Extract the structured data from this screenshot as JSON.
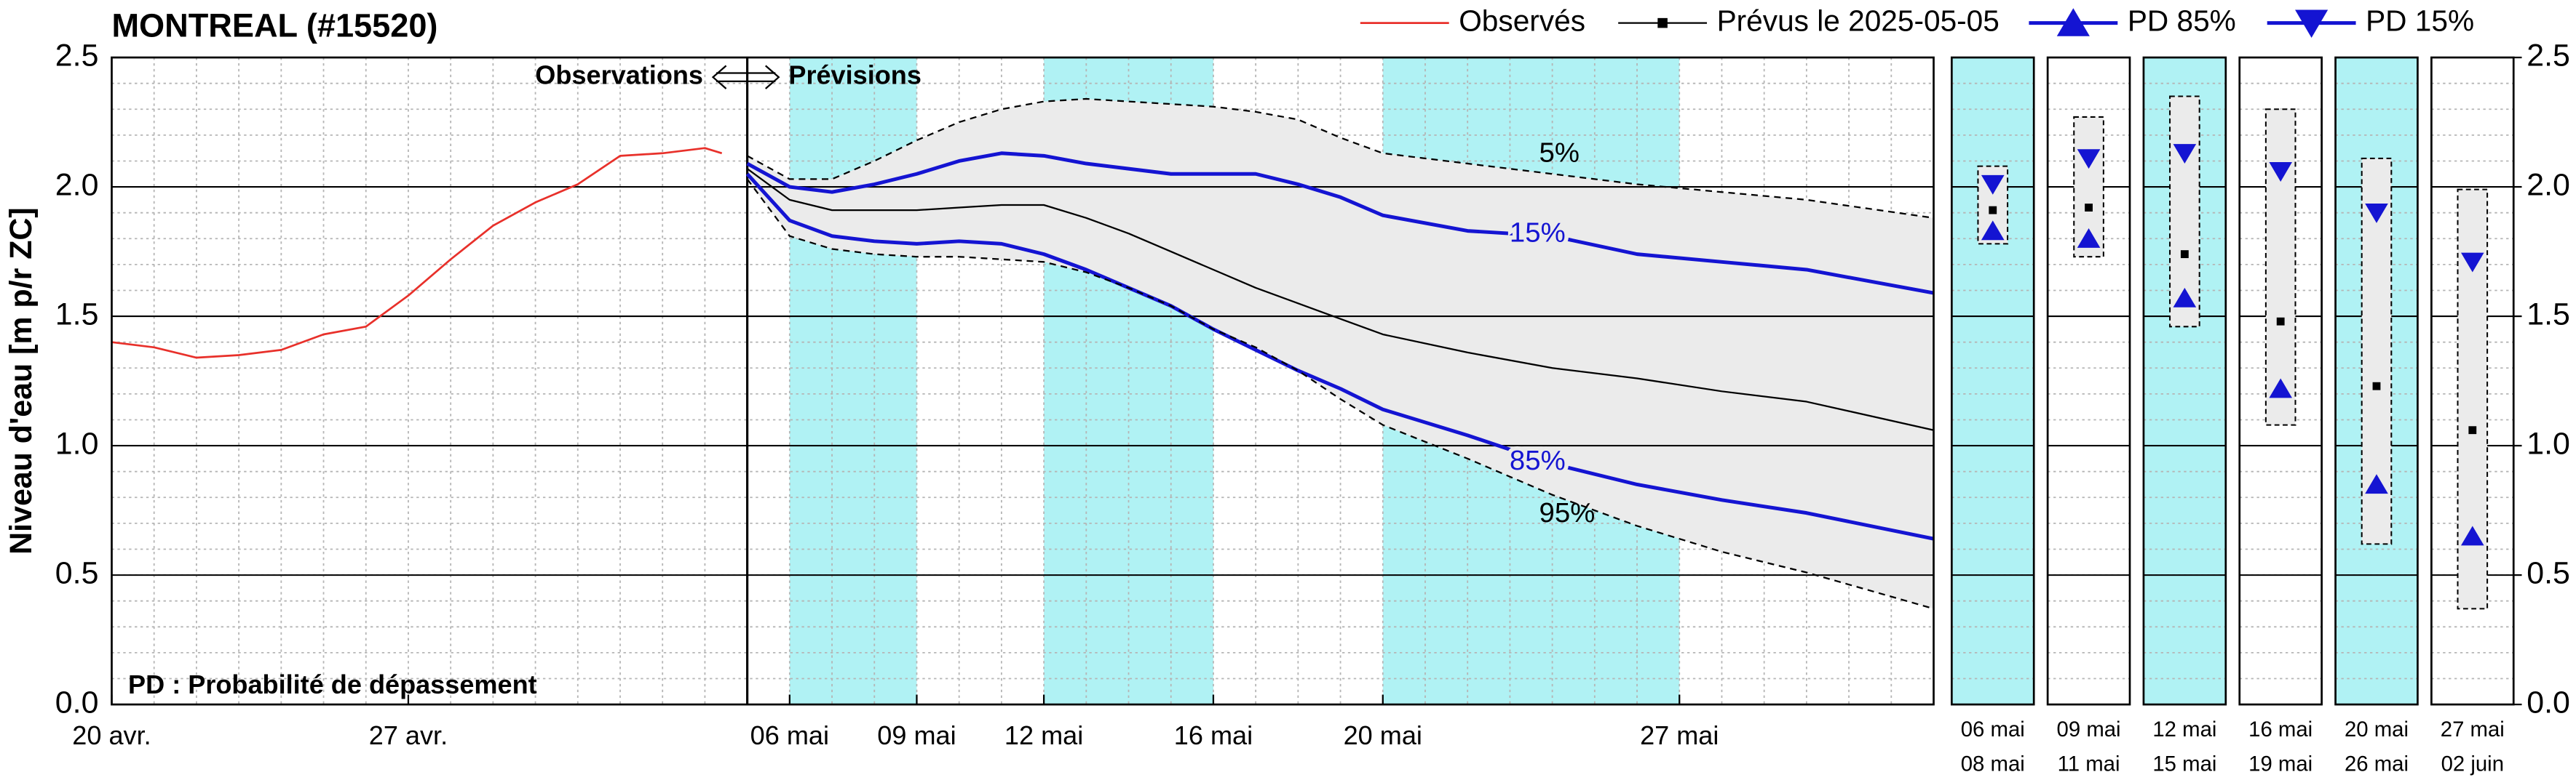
{
  "chart_data": [
    {
      "type": "line",
      "title": "MONTREAL (#15520)",
      "ylabel": "Niveau d'eau [m p/r ZC]",
      "annotations": {
        "observations": "Observations",
        "previsions": "Prévisions",
        "pd_note": "PD : Probabilité de dépassement"
      },
      "xlim": [
        110,
        153
      ],
      "xticks": [
        {
          "value": 110,
          "label": "20 avr."
        },
        {
          "value": 117,
          "label": "27 avr."
        },
        {
          "value": 126,
          "label": "06 mai"
        },
        {
          "value": 129,
          "label": "09 mai"
        },
        {
          "value": 132,
          "label": "12 mai"
        },
        {
          "value": 136,
          "label": "16 mai"
        },
        {
          "value": 140,
          "label": "20 mai"
        },
        {
          "value": 147,
          "label": "27 mai"
        }
      ],
      "ylim": [
        0,
        2.5
      ],
      "yticks": [
        {
          "value": 0,
          "label": "0.0"
        },
        0.5,
        {
          "value": 1,
          "label": "1.0"
        },
        1.5,
        {
          "value": 2,
          "label": "2.0"
        },
        2.5
      ],
      "grid": true,
      "boundary": 125,
      "bands": [
        [
          126,
          129
        ],
        [
          132,
          136
        ],
        [
          140,
          147
        ]
      ],
      "band_color": "#b0f2f4",
      "spread_color": "#ebebeb",
      "series": [
        {
          "name": "Observés",
          "color": "#e8302a",
          "width": 1.2,
          "x": [
            110,
            111,
            112,
            113,
            114,
            115,
            116,
            117,
            118,
            119,
            120,
            121,
            122,
            123,
            124,
            124.4
          ],
          "values": [
            1.4,
            1.38,
            1.34,
            1.35,
            1.37,
            1.43,
            1.46,
            1.58,
            1.72,
            1.85,
            1.94,
            2.01,
            2.12,
            2.13,
            2.15,
            2.13
          ]
        },
        {
          "name": "Prévus le 2025-05-05",
          "color": "#000000",
          "width": 1,
          "marker": "square",
          "x": [
            125,
            126,
            127,
            128,
            129,
            130,
            131,
            132,
            133,
            134,
            135,
            136,
            137,
            138,
            139,
            140,
            142,
            144,
            146,
            148,
            150,
            153
          ],
          "values": [
            2.07,
            1.95,
            1.91,
            1.91,
            1.91,
            1.92,
            1.93,
            1.93,
            1.88,
            1.82,
            1.75,
            1.68,
            1.61,
            1.55,
            1.49,
            1.43,
            1.36,
            1.3,
            1.26,
            1.21,
            1.17,
            1.06
          ]
        },
        {
          "name": "PD 85%",
          "inline_label": "85%",
          "color": "#1414d2",
          "width": 2.2,
          "marker": "triangle-up",
          "x": [
            125,
            126,
            127,
            128,
            129,
            130,
            131,
            132,
            133,
            134,
            135,
            136,
            137,
            138,
            139,
            140,
            142,
            144,
            146,
            148,
            150,
            153
          ],
          "values": [
            2.05,
            1.87,
            1.81,
            1.79,
            1.78,
            1.79,
            1.78,
            1.74,
            1.68,
            1.61,
            1.54,
            1.45,
            1.37,
            1.29,
            1.22,
            1.14,
            1.04,
            0.93,
            0.85,
            0.79,
            0.74,
            0.64
          ]
        },
        {
          "name": "PD 15%",
          "inline_label": "15%",
          "color": "#1414d2",
          "width": 2.2,
          "marker": "triangle-down",
          "x": [
            125,
            126,
            127,
            128,
            129,
            130,
            131,
            132,
            133,
            134,
            135,
            136,
            137,
            138,
            139,
            140,
            142,
            144,
            146,
            148,
            150,
            153
          ],
          "values": [
            2.09,
            2.0,
            1.98,
            2.01,
            2.05,
            2.1,
            2.13,
            2.12,
            2.09,
            2.07,
            2.05,
            2.05,
            2.05,
            2.01,
            1.96,
            1.89,
            1.83,
            1.81,
            1.74,
            1.71,
            1.68,
            1.59
          ]
        },
        {
          "name": "5%",
          "legend": false,
          "dashed": true,
          "color": "#000000",
          "width": 1,
          "x": [
            125,
            126,
            127,
            128,
            129,
            130,
            131,
            132,
            133,
            134,
            135,
            136,
            137,
            138,
            139,
            140,
            142,
            144,
            146,
            148,
            150,
            153
          ],
          "values": [
            2.12,
            2.03,
            2.03,
            2.1,
            2.18,
            2.25,
            2.3,
            2.33,
            2.34,
            2.33,
            2.32,
            2.31,
            2.29,
            2.26,
            2.19,
            2.13,
            2.09,
            2.05,
            2.01,
            1.98,
            1.95,
            1.88
          ]
        },
        {
          "name": "95%",
          "legend": false,
          "dashed": true,
          "color": "#000000",
          "width": 1,
          "x": [
            125,
            126,
            127,
            128,
            129,
            130,
            131,
            132,
            133,
            134,
            135,
            136,
            137,
            138,
            139,
            140,
            142,
            144,
            146,
            148,
            150,
            153
          ],
          "values": [
            2.03,
            1.81,
            1.76,
            1.74,
            1.73,
            1.73,
            1.72,
            1.71,
            1.67,
            1.61,
            1.54,
            1.45,
            1.38,
            1.29,
            1.18,
            1.08,
            0.95,
            0.81,
            0.69,
            0.59,
            0.51,
            0.37
          ]
        }
      ]
    },
    {
      "type": "range-box",
      "categories": [
        [
          "06 mai",
          "08 mai"
        ],
        [
          "09 mai",
          "11 mai"
        ],
        [
          "12 mai",
          "15 mai"
        ],
        [
          "16 mai",
          "19 mai"
        ],
        [
          "20 mai",
          "26 mai"
        ],
        [
          "27 mai",
          "02 juin"
        ]
      ],
      "highlight": [
        true,
        false,
        true,
        false,
        true,
        false
      ],
      "ylim": [
        0,
        2.5
      ],
      "yticks": [
        {
          "value": 0,
          "label": "0.0"
        },
        0.5,
        {
          "value": 1,
          "label": "1.0"
        },
        1.5,
        {
          "value": 2,
          "label": "2.0"
        },
        2.5
      ],
      "range_high": [
        2.08,
        2.27,
        2.35,
        2.3,
        2.11,
        1.99
      ],
      "range_low": [
        1.78,
        1.73,
        1.46,
        1.08,
        0.62,
        0.37
      ],
      "series": [
        {
          "marker": "triangle-down",
          "color": "#1414d2",
          "values": [
            2.01,
            2.11,
            2.13,
            2.06,
            1.9,
            1.71
          ]
        },
        {
          "marker": "square",
          "color": "#000000",
          "values": [
            1.91,
            1.92,
            1.74,
            1.48,
            1.23,
            1.06
          ]
        },
        {
          "marker": "triangle-up",
          "color": "#1414d2",
          "values": [
            1.83,
            1.8,
            1.57,
            1.22,
            0.85,
            0.65
          ]
        }
      ]
    }
  ]
}
